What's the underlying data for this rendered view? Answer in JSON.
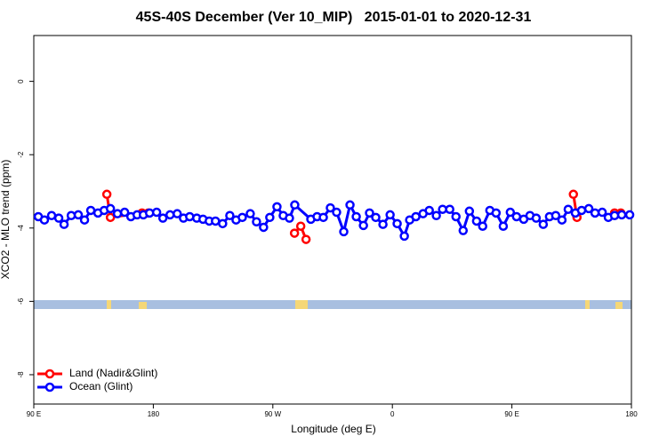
{
  "chart_data": {
    "type": "line",
    "title": "45S-40S December (Ver 10_MIP)   2015-01-01 to 2020-12-31",
    "x_label": "Longitude (deg E)",
    "y_label": "XCO2 - MLO trend (ppm)",
    "xlim": [
      90,
      540
    ],
    "ylim": [
      -8.8,
      1.25
    ],
    "xticks": [
      {
        "value": 90,
        "label": "90 E"
      },
      180,
      {
        "value": 270,
        "label": "90 W"
      },
      {
        "value": 360,
        "label": "0"
      },
      {
        "value": 450,
        "label": "90 E"
      },
      {
        "value": 540,
        "label": "180"
      }
    ],
    "yticks": [
      0,
      -2,
      -4,
      -6,
      -8
    ],
    "grid": false,
    "legend": "bottom-left",
    "series": [
      {
        "name": "Land (Nadir&Glint)",
        "color": "#ff0000",
        "x": [
          145.0,
          147.7,
          171.5,
          176.2,
          230,
          286.3,
          291.0,
          295.0,
          400,
          496.3,
          499.0,
          515,
          527.3,
          532.0
        ],
        "values": [
          -3.08,
          -3.71,
          -3.59,
          -3.59,
          null,
          -4.14,
          -3.95,
          -4.31,
          null,
          -3.08,
          -3.71,
          null,
          -3.59,
          -3.59
        ]
      },
      {
        "name": "Ocean (Glint)",
        "color": "#0000ff",
        "x": [
          93.4,
          98.0,
          103.4,
          108.8,
          112.8,
          118.2,
          123.5,
          128.2,
          132.9,
          138.3,
          143.0,
          147.7,
          153.0,
          158.4,
          163.1,
          167.8,
          172.5,
          177.2,
          182.5,
          187.2,
          192.6,
          198.0,
          202.7,
          207.4,
          212.7,
          217.4,
          222.1,
          226.8,
          232.2,
          237.6,
          242.3,
          247.0,
          253.0,
          257.7,
          263.0,
          267.7,
          273.1,
          277.8,
          282.5,
          286.5,
          298.6,
          303.3,
          308.0,
          313.3,
          318.0,
          323.4,
          328.1,
          332.8,
          338.2,
          342.8,
          347.5,
          352.9,
          358.3,
          363.6,
          369.0,
          373.0,
          377.7,
          383.1,
          387.8,
          393.1,
          397.8,
          403.2,
          407.9,
          413.3,
          418.0,
          423.4,
          428.0,
          433.4,
          438.1,
          443.5,
          448.8,
          453.5,
          458.9,
          463.6,
          468.3,
          473.6,
          478.3,
          483.0,
          487.7,
          492.4,
          497.8,
          502.5,
          507.9,
          512.6,
          518.0,
          522.6,
          527.3,
          532.7,
          538.7
        ],
        "values": [
          -3.69,
          -3.78,
          -3.66,
          -3.73,
          -3.9,
          -3.66,
          -3.64,
          -3.78,
          -3.52,
          -3.59,
          -3.52,
          -3.47,
          -3.61,
          -3.57,
          -3.69,
          -3.64,
          -3.64,
          -3.59,
          -3.57,
          -3.73,
          -3.64,
          -3.61,
          -3.73,
          -3.69,
          -3.73,
          -3.76,
          -3.81,
          -3.81,
          -3.88,
          -3.66,
          -3.78,
          -3.71,
          -3.61,
          -3.83,
          -3.98,
          -3.71,
          -3.42,
          -3.66,
          -3.73,
          -3.37,
          -3.76,
          -3.69,
          -3.71,
          -3.45,
          -3.57,
          -4.1,
          -3.37,
          -3.69,
          -3.93,
          -3.59,
          -3.71,
          -3.9,
          -3.64,
          -3.88,
          -4.22,
          -3.78,
          -3.69,
          -3.61,
          -3.52,
          -3.66,
          -3.49,
          -3.49,
          -3.69,
          -4.07,
          -3.54,
          -3.81,
          -3.95,
          -3.52,
          -3.59,
          -3.95,
          -3.57,
          -3.69,
          -3.76,
          -3.66,
          -3.73,
          -3.9,
          -3.69,
          -3.66,
          -3.78,
          -3.49,
          -3.59,
          -3.52,
          -3.47,
          -3.59,
          -3.57,
          -3.71,
          -3.66,
          -3.64,
          -3.64
        ]
      }
    ]
  }
}
